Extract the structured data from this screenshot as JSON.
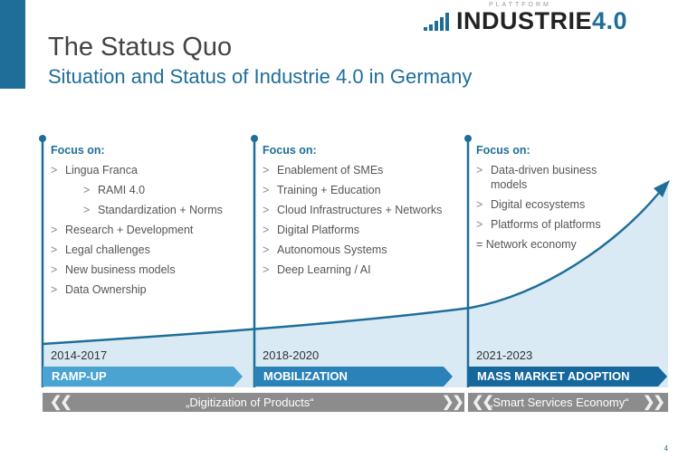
{
  "header": {
    "logo_small": "PLATTFORM",
    "logo_main": "INDUSTRIE",
    "logo_num": "4.0",
    "title": "The Status Quo",
    "subtitle": "Situation and Status of Industrie 4.0 in Germany"
  },
  "columns": [
    {
      "focus": "Focus on:",
      "items": [
        {
          "text": "Lingua Franca",
          "level": 0
        },
        {
          "text": "RAMI 4.0",
          "level": 1
        },
        {
          "text": "Standardization + Norms",
          "level": 1
        },
        {
          "text": "Research + Development",
          "level": 0
        },
        {
          "text": "Legal challenges",
          "level": 0
        },
        {
          "text": "New business models",
          "level": 0
        },
        {
          "text": "Data Ownership",
          "level": 0
        }
      ],
      "years": "2014-2017",
      "phase": "RAMP-UP"
    },
    {
      "focus": "Focus on:",
      "items": [
        {
          "text": "Enablement of SMEs",
          "level": 0
        },
        {
          "text": "Training + Education",
          "level": 0
        },
        {
          "text": "Cloud Infrastructures + Networks",
          "level": 0
        },
        {
          "text": "Digital Platforms",
          "level": 0
        },
        {
          "text": "Autonomous Systems",
          "level": 0
        },
        {
          "text": "Deep Learning / AI",
          "level": 0
        }
      ],
      "years": "2018-2020",
      "phase": "MOBILIZATION"
    },
    {
      "focus": "Focus on:",
      "items": [
        {
          "text": "Data-driven business models",
          "level": 0
        },
        {
          "text": "Digital ecosystems",
          "level": 0
        },
        {
          "text": "Platforms of platforms",
          "level": 0
        },
        {
          "text": "= Network economy",
          "level": 2
        }
      ],
      "years": "2021-2023",
      "phase": "MASS MARKET ADOPTION"
    }
  ],
  "bands": {
    "left_label": "„Digitization of Products“",
    "right_label": "„Smart Services Economy“",
    "chevron_left": "❮❮",
    "chevron_right": "❯❯"
  },
  "colors": {
    "accent": "#1f6e99",
    "phase1": "#4aa3d1",
    "phase2": "#2a82b8",
    "phase3": "#16679c",
    "band": "#8c8c8c",
    "fill": "#d6e8f2"
  },
  "page_number": "4"
}
